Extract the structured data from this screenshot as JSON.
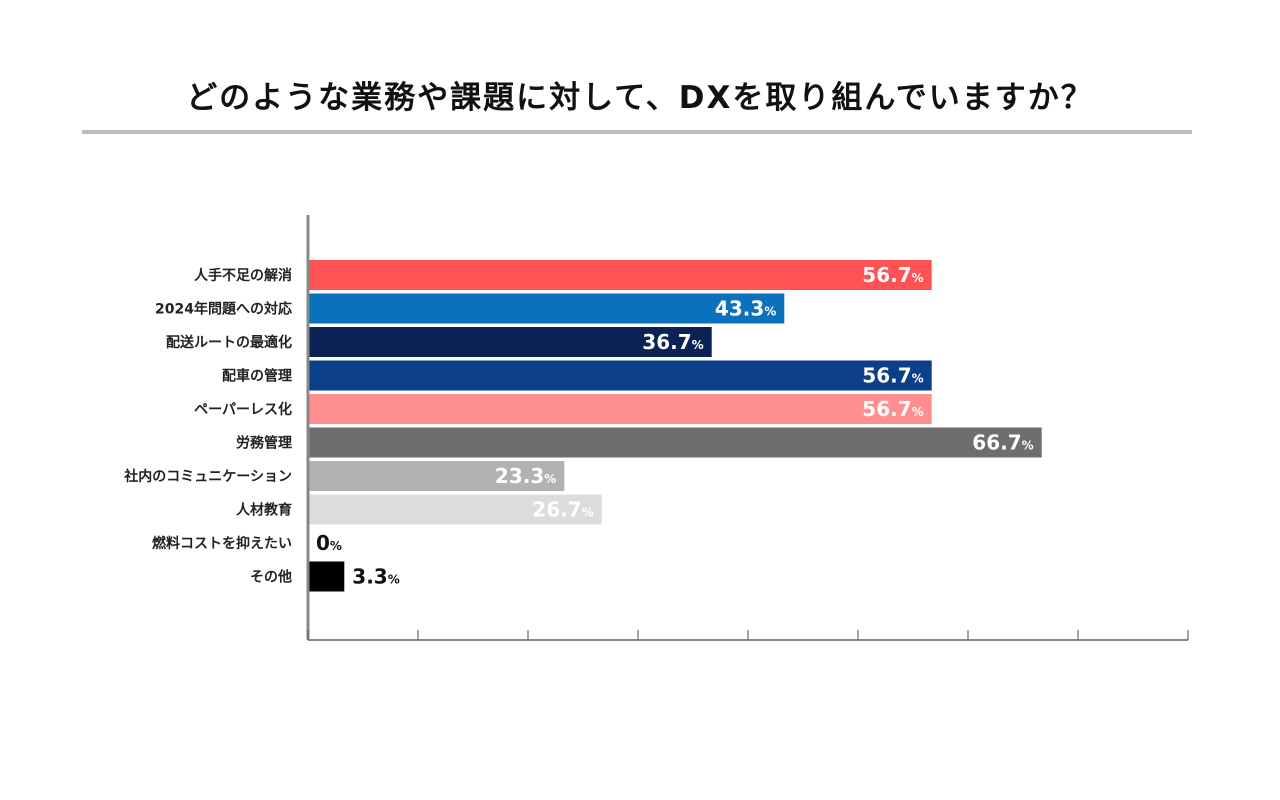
{
  "title": "どのような業務や課題に対して、DXを取り組んでいますか？",
  "chart_data": {
    "type": "bar",
    "orientation": "horizontal",
    "title": "どのような業務や課題に対して、DXを取り組んでいますか？",
    "xlim": [
      0,
      80
    ],
    "tick_step": 10,
    "unit": "%",
    "categories": [
      "人手不足の解消",
      "2024年問題への対応",
      "配送ルートの最適化",
      "配車の管理",
      "ペーパーレス化",
      "労務管理",
      "社内のコミュニケーション",
      "人材教育",
      "燃料コストを抑えたい",
      "その他"
    ],
    "values": [
      56.7,
      43.3,
      36.7,
      56.7,
      56.7,
      66.7,
      23.3,
      26.7,
      0,
      3.3
    ],
    "value_labels": [
      "56.7",
      "43.3",
      "36.7",
      "56.7",
      "56.7",
      "66.7",
      "23.3",
      "26.7",
      "0",
      "3.3"
    ],
    "colors": [
      "#ff5252",
      "#0b71bc",
      "#0b2257",
      "#0b3f88",
      "#ff8f8f",
      "#6e6e6e",
      "#b2b2b2",
      "#dcdcdc",
      "#000000",
      "#000000"
    ],
    "label_inside": [
      true,
      true,
      true,
      true,
      true,
      true,
      true,
      true,
      false,
      false
    ]
  }
}
